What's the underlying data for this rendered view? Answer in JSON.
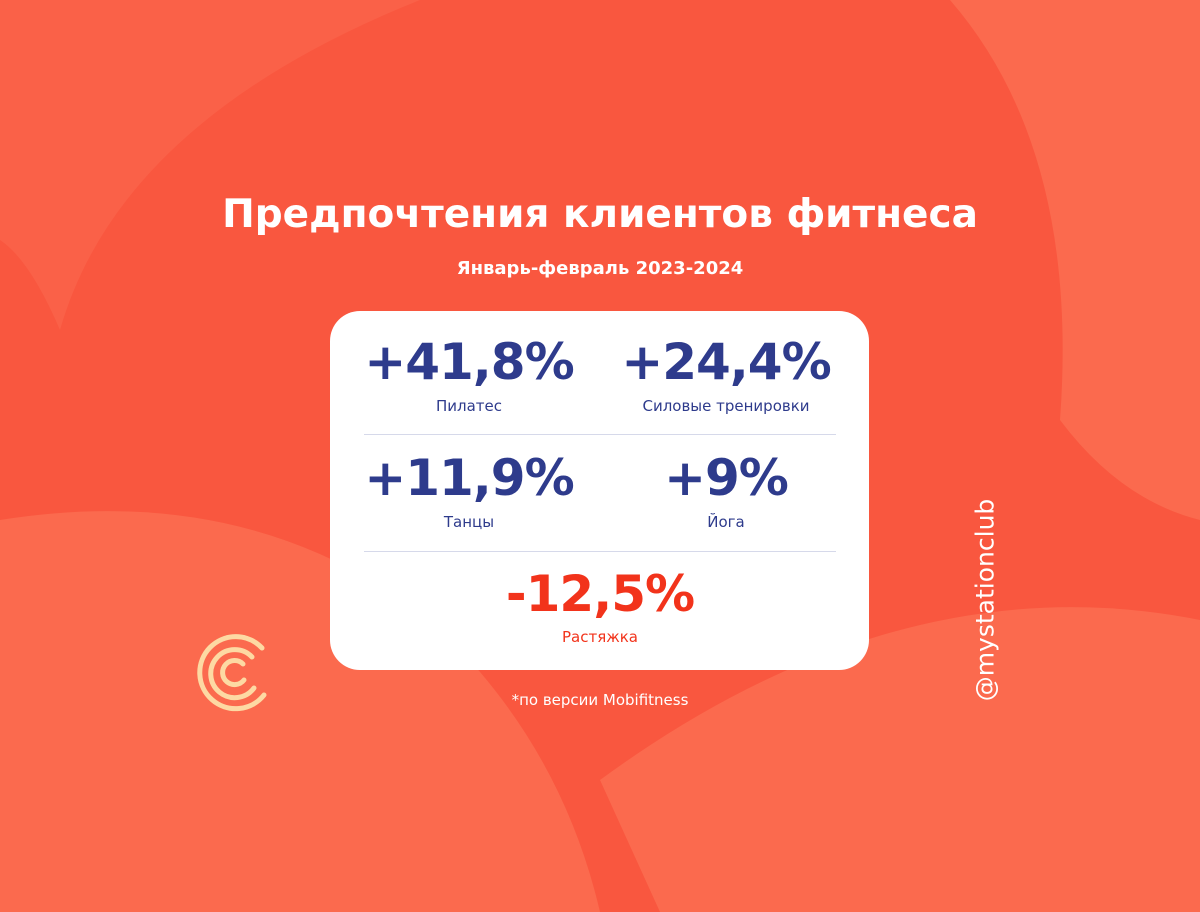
{
  "title": "Предпочтения клиентов фитнеса",
  "subtitle": "Январь-февраль 2023-2024",
  "stats": [
    {
      "value": "+41,8%",
      "label": "Пилатес"
    },
    {
      "value": "+24,4%",
      "label": "Силовые тренировки"
    },
    {
      "value": "+11,9%",
      "label": "Танцы"
    },
    {
      "value": "+9%",
      "label": "Йога"
    },
    {
      "value": "-12,5%",
      "label": "Растяжка"
    }
  ],
  "footnote": "*по версии Mobifitness",
  "handle": "@mystationclub"
}
